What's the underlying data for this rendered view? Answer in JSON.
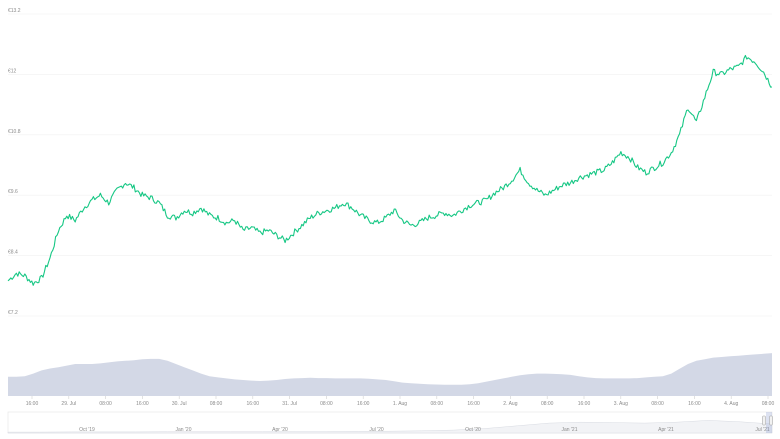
{
  "chart_data": {
    "type": "line",
    "currency_prefix": "€",
    "line_color": "#16c784",
    "area_color": "#d3d8e6",
    "y_axis": {
      "ticks": [
        "€13.2",
        "€12",
        "€10.8",
        "€9.6",
        "€8.4",
        "€7.2"
      ],
      "range": [
        7.2,
        13.2
      ]
    },
    "x_axis": {
      "ticks": [
        "16:00",
        "29. Jul",
        "08:00",
        "16:00",
        "30. Jul",
        "08:00",
        "16:00",
        "31. Jul",
        "08:00",
        "16:00",
        "1. Aug",
        "08:00",
        "16:00",
        "2. Aug",
        "08:00",
        "16:00",
        "3. Aug",
        "08:00",
        "16:00",
        "4. Aug",
        "08:00"
      ]
    },
    "price_series": {
      "name": "Price",
      "y": [
        7.9,
        8.05,
        8.0,
        7.85,
        7.95,
        8.35,
        8.9,
        9.2,
        9.1,
        9.35,
        9.5,
        9.6,
        9.45,
        9.7,
        9.85,
        9.75,
        9.6,
        9.55,
        9.45,
        9.2,
        9.15,
        9.3,
        9.25,
        9.35,
        9.2,
        9.15,
        9.05,
        9.1,
        8.9,
        8.95,
        8.85,
        8.9,
        8.8,
        8.7,
        8.85,
        9.0,
        9.15,
        9.25,
        9.3,
        9.35,
        9.45,
        9.35,
        9.2,
        9.1,
        9.05,
        9.15,
        9.3,
        9.1,
        9.0,
        9.05,
        9.15,
        9.2,
        9.25,
        9.2,
        9.3,
        9.4,
        9.45,
        9.5,
        9.65,
        9.75,
        9.9,
        10.1,
        9.85,
        9.7,
        9.6,
        9.7,
        9.8,
        9.85,
        9.95,
        10.0,
        10.05,
        10.1,
        10.25,
        10.45,
        10.35,
        10.15,
        10.05,
        10.15,
        10.25,
        10.45,
        10.8,
        11.35,
        11.05,
        11.55,
        12.05,
        12.0,
        12.1,
        12.15,
        12.35,
        12.25,
        12.05,
        11.75
      ]
    },
    "volume_series": {
      "name": "Volume",
      "y": [
        0.6,
        0.6,
        0.62,
        0.7,
        0.8,
        0.86,
        0.9,
        0.95,
        1.0,
        1.0,
        1.0,
        1.02,
        1.05,
        1.08,
        1.1,
        1.12,
        1.15,
        1.16,
        1.16,
        1.1,
        1.0,
        0.9,
        0.8,
        0.7,
        0.62,
        0.58,
        0.55,
        0.52,
        0.5,
        0.48,
        0.47,
        0.48,
        0.5,
        0.53,
        0.55,
        0.56,
        0.57,
        0.56,
        0.56,
        0.55,
        0.55,
        0.55,
        0.55,
        0.54,
        0.52,
        0.5,
        0.46,
        0.42,
        0.4,
        0.38,
        0.37,
        0.36,
        0.35,
        0.35,
        0.35,
        0.37,
        0.4,
        0.45,
        0.5,
        0.55,
        0.6,
        0.65,
        0.68,
        0.7,
        0.7,
        0.69,
        0.68,
        0.66,
        0.62,
        0.58,
        0.56,
        0.55,
        0.55,
        0.55,
        0.55,
        0.56,
        0.58,
        0.6,
        0.62,
        0.7,
        0.85,
        1.0,
        1.1,
        1.15,
        1.2,
        1.22,
        1.24,
        1.26,
        1.28,
        1.3,
        1.32,
        1.34
      ]
    },
    "navigator": {
      "ticks": [
        "Oct '19",
        "Jan '20",
        "Apr '20",
        "Jul '20",
        "Oct '20",
        "Jan '21",
        "Apr '21",
        "Jul '21"
      ],
      "y": [
        0.05,
        0.05,
        0.06,
        0.06,
        0.06,
        0.07,
        0.07,
        0.07,
        0.07,
        0.08,
        0.08,
        0.09,
        0.1,
        0.12,
        0.16,
        0.25,
        0.4,
        0.55,
        0.6,
        0.58,
        0.55,
        0.6,
        0.7,
        0.62,
        0.5
      ]
    },
    "grid": true,
    "legend": "none"
  }
}
